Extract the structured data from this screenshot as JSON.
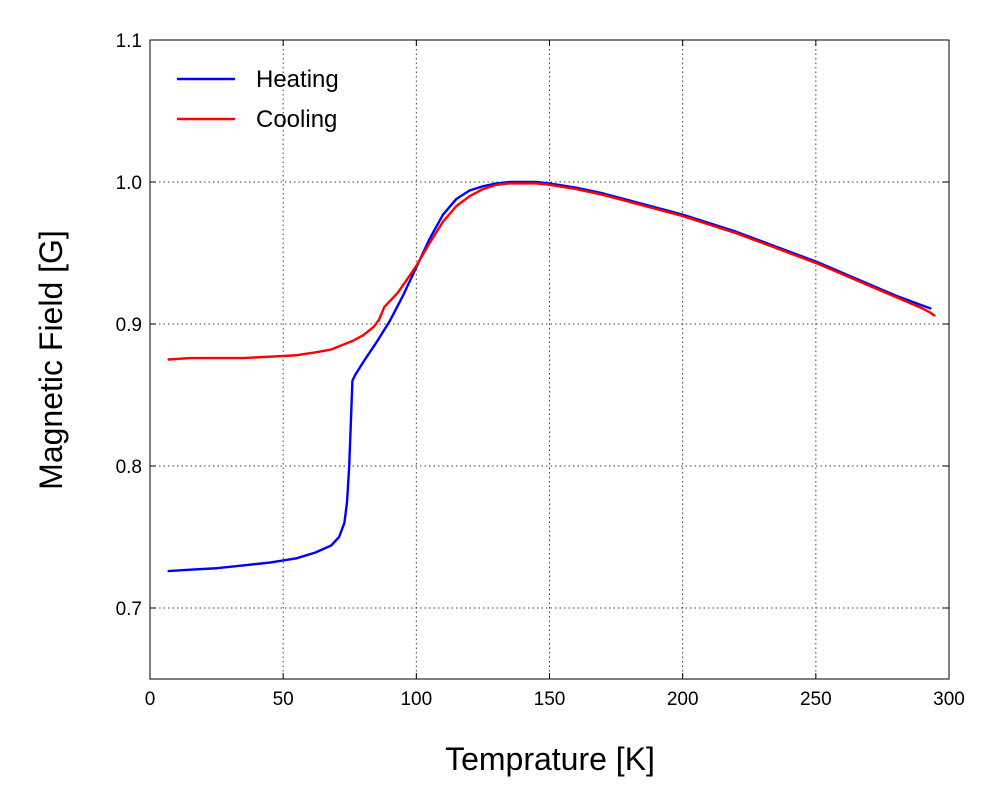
{
  "chart_data": {
    "type": "line",
    "title": "",
    "xlabel": "Temprature [K]",
    "ylabel": "Magnetic Field [G]",
    "xlim": [
      0,
      300
    ],
    "ylim": [
      0.65,
      1.1
    ],
    "xticks": [
      0,
      50,
      100,
      150,
      200,
      250,
      300
    ],
    "yticks": [
      0.7,
      0.8,
      0.9,
      1.0,
      1.1
    ],
    "xtick_labels": [
      "0",
      "50",
      "100",
      "150",
      "200",
      "250",
      "300"
    ],
    "ytick_labels": [
      "0.7",
      "0.8",
      "0.9",
      "1.0",
      "1.1"
    ],
    "grid": true,
    "legend_position": "top-left",
    "series": [
      {
        "name": "Heating",
        "color": "#0000ff",
        "x": [
          7,
          15,
          25,
          35,
          45,
          55,
          62,
          68,
          71,
          73,
          74,
          74.8,
          75.4,
          76,
          77,
          80,
          85,
          90,
          95,
          100,
          105,
          110,
          115,
          120,
          125,
          130,
          135,
          140,
          145,
          150,
          160,
          170,
          180,
          190,
          200,
          210,
          220,
          230,
          240,
          250,
          260,
          270,
          280,
          290,
          293
        ],
        "y": [
          0.726,
          0.727,
          0.728,
          0.73,
          0.732,
          0.735,
          0.739,
          0.744,
          0.75,
          0.76,
          0.775,
          0.8,
          0.83,
          0.86,
          0.864,
          0.873,
          0.887,
          0.902,
          0.92,
          0.94,
          0.96,
          0.977,
          0.988,
          0.994,
          0.997,
          0.999,
          1.0,
          1.0,
          1.0,
          0.999,
          0.996,
          0.992,
          0.987,
          0.982,
          0.977,
          0.971,
          0.965,
          0.958,
          0.951,
          0.944,
          0.936,
          0.928,
          0.92,
          0.913,
          0.911
        ]
      },
      {
        "name": "Cooling",
        "color": "#ff0000",
        "x": [
          7,
          15,
          25,
          35,
          45,
          55,
          62,
          68,
          72,
          76,
          80,
          84,
          86,
          88,
          90,
          93,
          96,
          100,
          105,
          110,
          115,
          120,
          125,
          130,
          135,
          140,
          145,
          150,
          160,
          170,
          180,
          190,
          200,
          210,
          220,
          230,
          240,
          250,
          260,
          270,
          280,
          290,
          293,
          294.5
        ],
        "y": [
          0.875,
          0.876,
          0.876,
          0.876,
          0.877,
          0.878,
          0.88,
          0.882,
          0.885,
          0.888,
          0.892,
          0.898,
          0.903,
          0.912,
          0.916,
          0.922,
          0.93,
          0.941,
          0.957,
          0.972,
          0.983,
          0.99,
          0.995,
          0.998,
          0.999,
          0.999,
          0.999,
          0.998,
          0.995,
          0.991,
          0.986,
          0.981,
          0.976,
          0.97,
          0.964,
          0.957,
          0.95,
          0.943,
          0.935,
          0.927,
          0.919,
          0.911,
          0.908,
          0.906
        ]
      }
    ]
  }
}
